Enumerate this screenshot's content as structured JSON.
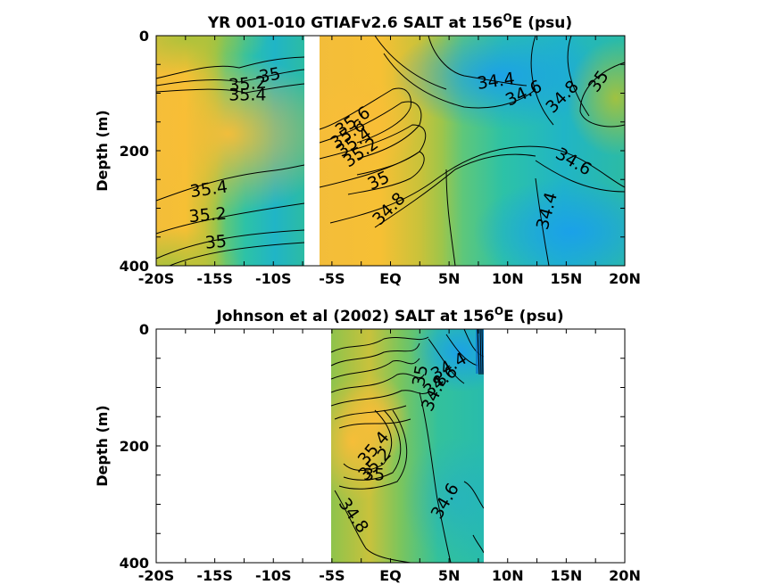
{
  "chart_data": [
    {
      "type": "heatmap",
      "title_main": "YR 001-010 GTIAFv2.6 SALT at 156",
      "title_sup": "O",
      "title_tail": "E (psu)",
      "ylabel": "Depth (m)",
      "xlim": [
        -20,
        20
      ],
      "ylim": [
        0,
        400
      ],
      "x_ticks": [
        {
          "v": -20,
          "label": "-20S"
        },
        {
          "v": -15,
          "label": "-15S"
        },
        {
          "v": -10,
          "label": "-10S"
        },
        {
          "v": -5,
          "label": "-5S"
        },
        {
          "v": 0,
          "label": "EQ"
        },
        {
          "v": 5,
          "label": "5N"
        },
        {
          "v": 10,
          "label": "10N"
        },
        {
          "v": 15,
          "label": "15N"
        },
        {
          "v": 20,
          "label": "20N"
        }
      ],
      "y_ticks": [
        {
          "v": 0,
          "label": "0"
        },
        {
          "v": 200,
          "label": "200"
        },
        {
          "v": 400,
          "label": "400"
        }
      ],
      "data_gaps": [
        [
          -7.5,
          -6.8
        ]
      ],
      "contour_labels": [
        {
          "text": "35",
          "x": -10.3,
          "y": 70,
          "angle": -10
        },
        {
          "text": "35.2",
          "x": -12.2,
          "y": 85,
          "angle": -5
        },
        {
          "text": "35.4",
          "x": -12.2,
          "y": 104,
          "angle": 0
        },
        {
          "text": "35.6",
          "x": -3.2,
          "y": 150,
          "angle": -35
        },
        {
          "text": "35.6",
          "x": -3.6,
          "y": 172,
          "angle": -35
        },
        {
          "text": "35.4",
          "x": -3.1,
          "y": 186,
          "angle": -35
        },
        {
          "text": "35.2",
          "x": -2.5,
          "y": 204,
          "angle": -35
        },
        {
          "text": "35",
          "x": -1.0,
          "y": 253,
          "angle": -25
        },
        {
          "text": "34.8",
          "x": -0.1,
          "y": 302,
          "angle": -45
        },
        {
          "text": "35.4",
          "x": -15.5,
          "y": 268,
          "angle": -8
        },
        {
          "text": "35.2",
          "x": -15.6,
          "y": 313,
          "angle": -5
        },
        {
          "text": "35",
          "x": -14.9,
          "y": 360,
          "angle": -5
        },
        {
          "text": "34.4",
          "x": 9.0,
          "y": 80,
          "angle": -8
        },
        {
          "text": "34.6",
          "x": 11.4,
          "y": 101,
          "angle": -25
        },
        {
          "text": "34.8",
          "x": 14.7,
          "y": 107,
          "angle": -45
        },
        {
          "text": "35",
          "x": 17.8,
          "y": 80,
          "angle": -55
        },
        {
          "text": "34.6",
          "x": 15.6,
          "y": 220,
          "angle": 30
        },
        {
          "text": "34.4",
          "x": 13.4,
          "y": 305,
          "angle": -75
        }
      ]
    },
    {
      "type": "heatmap",
      "title_main": "Johnson et al (2002) SALT at 156",
      "title_sup": "O",
      "title_tail": "E (psu)",
      "ylabel": "Depth (m)",
      "xlim": [
        -20,
        20
      ],
      "ylim": [
        0,
        400
      ],
      "data_xrange": [
        -5,
        8
      ],
      "x_ticks": [
        {
          "v": -20,
          "label": "-20S"
        },
        {
          "v": -15,
          "label": "-15S"
        },
        {
          "v": -10,
          "label": "-10S"
        },
        {
          "v": -5,
          "label": "-5S"
        },
        {
          "v": 0,
          "label": "EQ"
        },
        {
          "v": 5,
          "label": "5N"
        },
        {
          "v": 10,
          "label": "10N"
        },
        {
          "v": 15,
          "label": "15N"
        },
        {
          "v": 20,
          "label": "20N"
        }
      ],
      "y_ticks": [
        {
          "v": 0,
          "label": "0"
        },
        {
          "v": 200,
          "label": "200"
        },
        {
          "v": 400,
          "label": "400"
        }
      ],
      "contour_labels": [
        {
          "text": "34.4",
          "x": 5.0,
          "y": 65,
          "angle": -30
        },
        {
          "text": "34.6",
          "x": 4.3,
          "y": 90,
          "angle": -40
        },
        {
          "text": "34.8",
          "x": 3.8,
          "y": 110,
          "angle": -65
        },
        {
          "text": "35",
          "x": 2.6,
          "y": 80,
          "angle": -80
        },
        {
          "text": "35.4",
          "x": -1.4,
          "y": 205,
          "angle": -50
        },
        {
          "text": "35.2",
          "x": -1.3,
          "y": 232,
          "angle": -45
        },
        {
          "text": "35",
          "x": -1.4,
          "y": 250,
          "angle": 0
        },
        {
          "text": "34.8",
          "x": -3.2,
          "y": 320,
          "angle": 55
        },
        {
          "text": "34.6",
          "x": 4.7,
          "y": 295,
          "angle": -60
        }
      ]
    }
  ],
  "colors": {
    "low": "#1aa3e6",
    "mid_low": "#2bc0b4",
    "mid": "#4cc56a",
    "mid_high": "#a8c23a",
    "high": "#f9bd38"
  }
}
